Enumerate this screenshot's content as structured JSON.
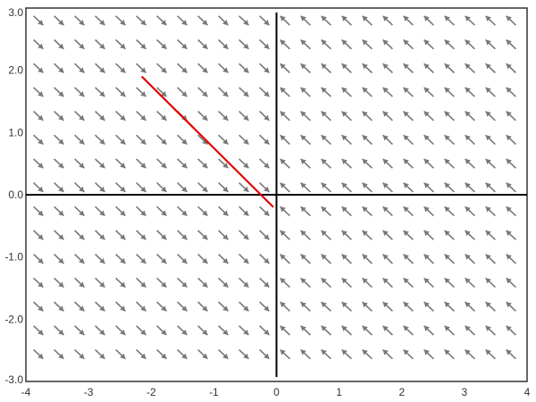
{
  "chart_data": {
    "type": "vector-field",
    "title": "",
    "xlabel": "",
    "ylabel": "",
    "xlim": [
      -4,
      4
    ],
    "ylim": [
      -3,
      3
    ],
    "grid": false,
    "x_ticks": [
      "-4",
      "-3",
      "-2",
      "-1",
      "0",
      "1",
      "2",
      "3",
      "4"
    ],
    "y_ticks": [
      "3.0",
      "2.0",
      "1.0",
      "0.0",
      "-1.0",
      "-2.0",
      "-3.0"
    ],
    "field": {
      "description_formula": "dx/dt = -x, dy/dt = -0.5*sign(y)... approx: arrows point down-right for x<0, up-left for x>0 (toward x=0 axis)",
      "x_range": [
        -3.6,
        3.8
      ],
      "y_range": [
        -2.85,
        2.85
      ],
      "arrow_color": "#777777"
    },
    "series": [
      {
        "type": "line",
        "color": "#e00000",
        "x": [
          -2.15,
          -0.05
        ],
        "y": [
          1.9,
          -0.2
        ]
      }
    ],
    "axes_color": "#000000",
    "frame_color": "#333333"
  }
}
